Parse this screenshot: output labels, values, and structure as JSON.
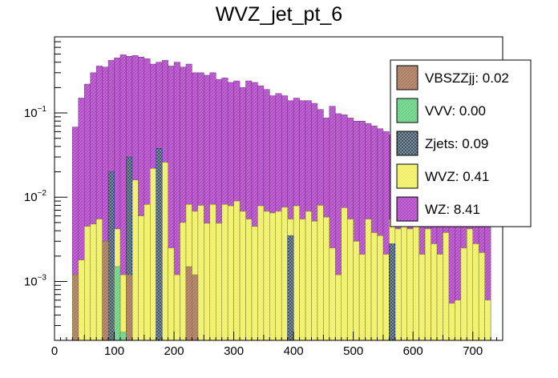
{
  "chart_data": {
    "type": "bar",
    "title": "WVZ_jet_pt_6",
    "xlabel": "",
    "ylabel": "",
    "xlim": [
      0,
      750
    ],
    "ylim": [
      0.0002,
      0.8
    ],
    "yscale": "log",
    "stacked": true,
    "bin_width": 10,
    "x_tick_labels": [
      "0",
      "100",
      "200",
      "300",
      "400",
      "500",
      "600",
      "700"
    ],
    "y_tick_labels": [
      {
        "base": "10",
        "exp": "−3",
        "value": 0.001
      },
      {
        "base": "10",
        "exp": "−2",
        "value": 0.01
      },
      {
        "base": "10",
        "exp": "−1",
        "value": 0.1
      }
    ],
    "legend_position": "top-right",
    "series": [
      {
        "name": "VBSZZjj",
        "legend_label": "VBSZZjj: 0.02",
        "color": "#b98e75",
        "bins": [
          {
            "x": 30,
            "v": 0.0012
          },
          {
            "x": 80,
            "v": 0.003
          },
          {
            "x": 120,
            "v": 0.0012
          },
          {
            "x": 220,
            "v": 0.0015
          },
          {
            "x": 230,
            "v": 0.0012
          }
        ]
      },
      {
        "name": "VVV",
        "legend_label": "VVV: 0.00",
        "color": "#7fdc99",
        "bins": [
          {
            "x": 100,
            "v": 0.0015
          },
          {
            "x": 110,
            "v": 0.00025
          }
        ]
      },
      {
        "name": "Zjets",
        "legend_label": "Zjets: 0.09",
        "color": "#1a2fb0",
        "bins": [
          {
            "x": 90,
            "v": 0.02
          },
          {
            "x": 120,
            "v": 0.03
          },
          {
            "x": 170,
            "v": 0.038
          },
          {
            "x": 390,
            "v": 0.0035
          },
          {
            "x": 560,
            "v": 0.0028
          }
        ]
      },
      {
        "name": "WVZ",
        "legend_label": "WVZ: 0.41",
        "color": "#f6f67c",
        "values": [
          0,
          0,
          0,
          0.0012,
          0.0018,
          0.0045,
          0.0048,
          0.0055,
          0.0012,
          0.0028,
          0.0042,
          0.0012,
          0.0018,
          0.016,
          0.006,
          0.0082,
          0.022,
          0.025,
          0.026,
          0.0025,
          0.0012,
          0.005,
          0.0082,
          0.0068,
          0.008,
          0.0049,
          0.0082,
          0.0049,
          0.0082,
          0.0079,
          0.009,
          0.0068,
          0.0055,
          0.0045,
          0.0079,
          0.0068,
          0.0065,
          0.0068,
          0.0076,
          0.0055,
          0.0079,
          0.0055,
          0.0068,
          0.0052,
          0.008,
          0.0058,
          0.0025,
          0.0012,
          0.0075,
          0.0055,
          0.003,
          0.0021,
          0.0055,
          0.0038,
          0.0035,
          0.0021,
          0.0055,
          0.0042,
          0.0058,
          0.0042,
          0.0055,
          0.0021,
          0.0042,
          0.0028,
          0.0021,
          0.0038,
          0.00055,
          0.0006,
          0.0025,
          0.0042,
          0.0028,
          0.0022,
          0.0006,
          0,
          0,
          0
        ]
      },
      {
        "name": "WZ",
        "legend_label": "WZ: 8.41",
        "color": "#b04dc5",
        "totals": [
          0,
          0,
          0,
          0.068,
          0.15,
          0.22,
          0.3,
          0.36,
          0.35,
          0.42,
          0.45,
          0.49,
          0.47,
          0.48,
          0.46,
          0.44,
          0.38,
          0.4,
          0.42,
          0.36,
          0.4,
          0.35,
          0.38,
          0.3,
          0.3,
          0.28,
          0.3,
          0.25,
          0.26,
          0.23,
          0.24,
          0.2,
          0.24,
          0.23,
          0.21,
          0.19,
          0.16,
          0.17,
          0.16,
          0.14,
          0.15,
          0.14,
          0.14,
          0.13,
          0.11,
          0.087,
          0.12,
          0.098,
          0.095,
          0.087,
          0.08,
          0.08,
          0.075,
          0.07,
          0.065,
          0.06,
          0.055,
          0.05,
          0.045,
          0.04,
          0.038,
          0.035,
          0.033,
          0.03,
          0.028,
          0.026,
          0.024,
          0.022,
          0.02,
          0.018,
          0.017,
          0.015,
          0.014,
          0,
          0,
          0
        ]
      }
    ]
  }
}
